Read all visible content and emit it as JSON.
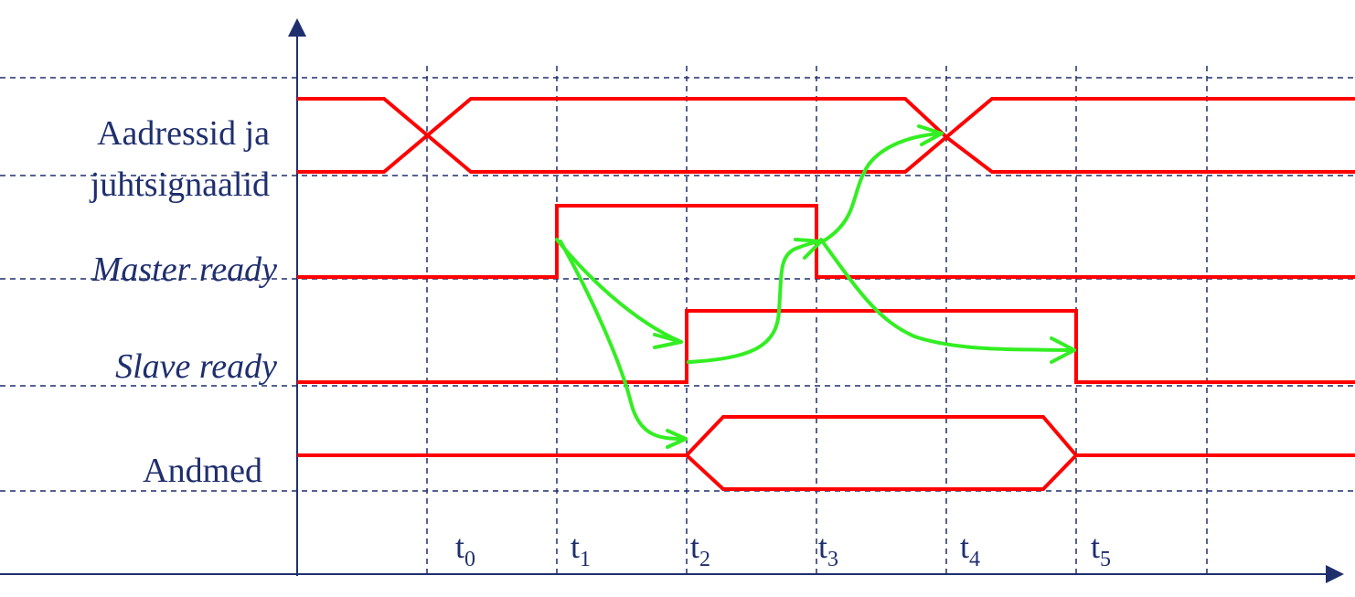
{
  "signals": [
    {
      "key": "addr",
      "lines": [
        "Aadressid ja",
        "juhtsignaalid"
      ],
      "italic": false
    },
    {
      "key": "master",
      "lines": [
        "Master ready"
      ],
      "italic": true
    },
    {
      "key": "slave",
      "lines": [
        "Slave ready"
      ],
      "italic": true
    },
    {
      "key": "data",
      "lines": [
        "Andmed"
      ],
      "italic": false
    }
  ],
  "time_marks": [
    {
      "base": "t",
      "sub": "0"
    },
    {
      "base": "t",
      "sub": "1"
    },
    {
      "base": "t",
      "sub": "2"
    },
    {
      "base": "t",
      "sub": "3"
    },
    {
      "base": "t",
      "sub": "4"
    },
    {
      "base": "t",
      "sub": "5"
    }
  ],
  "colors": {
    "signal": "#ff0000",
    "causality": "#33ee22",
    "grid": "#1f2f6e",
    "axis": "#1f2f6e",
    "text": "#1f2f6e"
  }
}
